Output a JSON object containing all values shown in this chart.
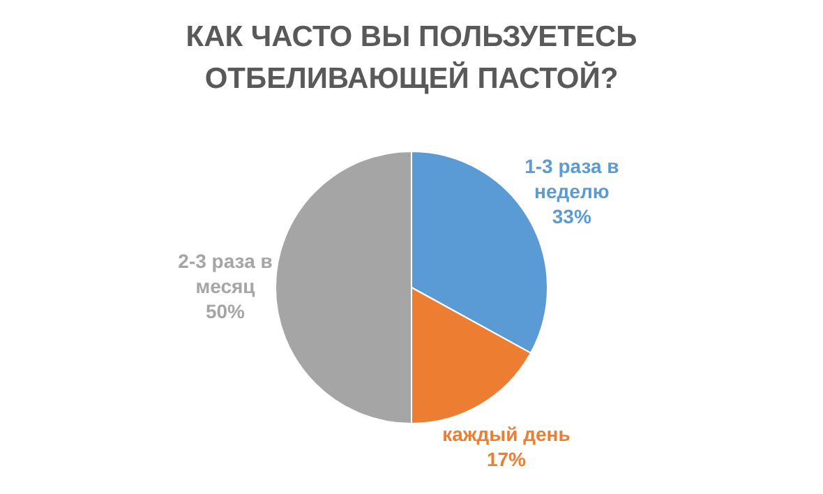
{
  "chart_data": {
    "type": "pie",
    "title": "КАК ЧАСТО ВЫ ПОЛЬЗУЕТЕСЬ ОТБЕЛИВАЮЩЕЙ ПАСТОЙ?",
    "categories": [
      "1-3 раза в неделю",
      "каждый день",
      "2-3 раза в месяц"
    ],
    "values": [
      33,
      17,
      50
    ],
    "colors": [
      "#5b9bd5",
      "#ed7d31",
      "#a5a5a5"
    ],
    "value_labels": [
      "33%",
      "17%",
      "50%"
    ],
    "legend": false
  }
}
